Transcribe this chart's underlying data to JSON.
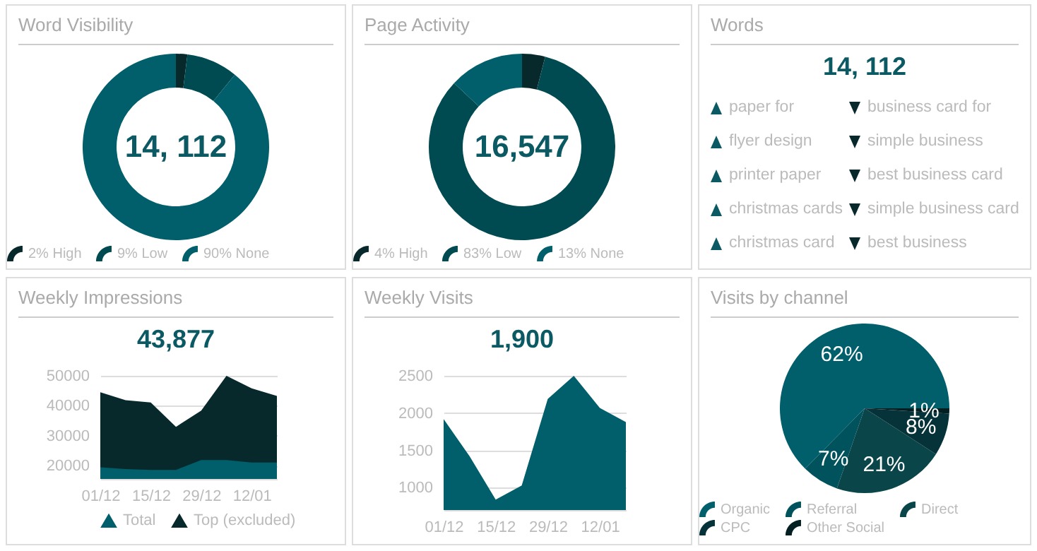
{
  "chart_data": [
    {
      "type": "donut",
      "title": "Word Visibility",
      "annotations": [
        "14, 112"
      ],
      "categories": [
        "2% High",
        "9% Low",
        "90% None"
      ],
      "values": [
        2,
        9,
        90
      ],
      "colors": [
        "#08292c",
        "#004a52",
        "#005f6b"
      ],
      "legend": "bottom"
    },
    {
      "type": "donut",
      "title": "Page Activity",
      "annotations": [
        "16,547"
      ],
      "categories": [
        "4% High",
        "83% Low",
        "13% None"
      ],
      "values": [
        4,
        83,
        13
      ],
      "colors": [
        "#08292c",
        "#004a52",
        "#005f6b"
      ],
      "legend": "bottom"
    },
    {
      "type": "other",
      "title": "Words",
      "subtitle": "14, 112",
      "annotations": [
        "paper for",
        "flyer design",
        "printer paper",
        "christmas cards",
        "christmas card",
        "business card for",
        "simple business",
        "best business card",
        "simple business card",
        "best business"
      ]
    },
    {
      "type": "area",
      "title": "Weekly Impressions",
      "subtitle": "43,877",
      "categories": [
        "01/12",
        null,
        "15/12",
        null,
        "29/12",
        null,
        "12/01",
        null
      ],
      "ylim": [
        15600,
        50000
      ],
      "yticks": [
        20000,
        30000,
        40000,
        50000
      ],
      "grid": "y",
      "legend": "bottom",
      "series": [
        {
          "name": "Total",
          "color": "#005f6b",
          "values": [
            19500,
            18900,
            18600,
            18600,
            21900,
            21900,
            21100,
            21100
          ]
        },
        {
          "name": "Top (excluded)",
          "color": "#08292c",
          "values": [
            44500,
            41900,
            41100,
            33000,
            38400,
            50000,
            45800,
            43300
          ]
        }
      ]
    },
    {
      "type": "area",
      "title": "Weekly Visits",
      "subtitle": "1,900",
      "categories": [
        "01/12",
        null,
        "15/12",
        null,
        "29/12",
        null,
        "12/01",
        null
      ],
      "ylim": [
        700,
        2500
      ],
      "yticks": [
        1000,
        1500,
        2000,
        2500
      ],
      "grid": "y",
      "series": [
        {
          "color": "#005f6b",
          "values": [
            1920,
            1420,
            840,
            1030,
            2190,
            2500,
            2070,
            1880
          ]
        }
      ]
    },
    {
      "type": "pie",
      "title": "Visits by channel",
      "categories": [
        "Organic",
        "Referral",
        "Direct",
        "CPC",
        "Other Social"
      ],
      "values": [
        62,
        7,
        21,
        8,
        1
      ],
      "value_labels": [
        "62%",
        "7%",
        "21%",
        "8%",
        "1%"
      ],
      "colors": [
        "#005f6b",
        "#00535d",
        "#0a4649",
        "#06333a",
        "#041f22"
      ],
      "legend": "bottom"
    }
  ]
}
